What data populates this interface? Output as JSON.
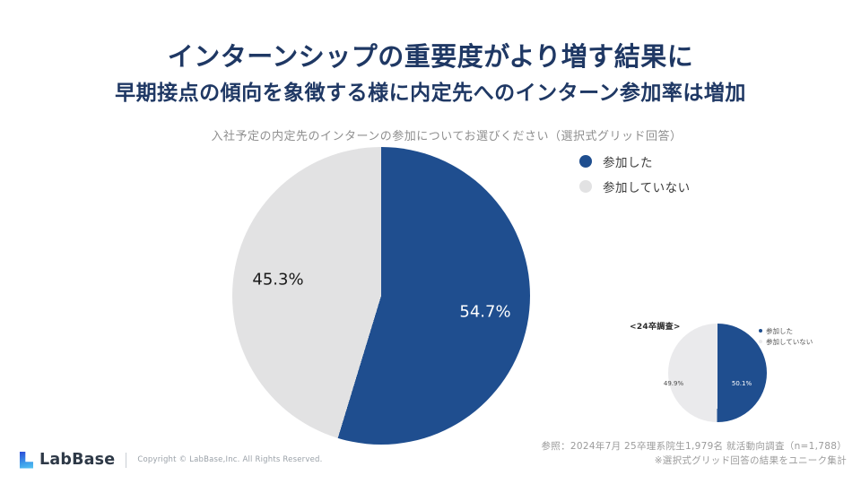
{
  "slide": {
    "title_line1": "インターンシップの重要度がより増す結果に",
    "title_line2": "早期接点の傾向を象徴する様に内定先へのインターン参加率は増加",
    "question": "入社予定の内定先のインターンの参加についてお選びください（選択式グリッド回答）"
  },
  "colors": {
    "title_navy": "#1F3864",
    "pie_blue": "#1F4E8F",
    "pie_gray": "#E2E2E3",
    "question_gray": "#8F8F8F"
  },
  "small_chart": {
    "caption": "<24卒調査>"
  },
  "reference": {
    "line1": "参照：2024年7月 25卒理系院生1,979名 就活動向調査（n=1,788）",
    "line2": "※選択式グリッド回答の結果をユニーク集計"
  },
  "footer": {
    "logo_text": "LabBase",
    "copyright": "Copyright ©  LabBase,Inc. All Rights Reserved."
  },
  "chart_data": [
    {
      "type": "pie",
      "title": "入社予定の内定先のインターンの参加についてお選びください（選択式グリッド回答）",
      "categories": [
        "参加した",
        "参加していない"
      ],
      "values": [
        54.7,
        45.3
      ],
      "display_labels": [
        "54.7%",
        "45.3%"
      ],
      "colors": [
        "#1F4E8F",
        "#E2E2E3"
      ],
      "start_angle_deg": 0,
      "direction": "clockwise",
      "legend_position": "right"
    },
    {
      "type": "pie",
      "title": "<24卒調査>",
      "categories": [
        "参加した",
        "参加していない"
      ],
      "values": [
        50.1,
        49.9
      ],
      "display_labels": [
        "50.1%",
        "49.9%"
      ],
      "colors": [
        "#1F4E8F",
        "#EAEAEC"
      ],
      "start_angle_deg": 0,
      "direction": "clockwise",
      "legend_position": "right"
    }
  ]
}
